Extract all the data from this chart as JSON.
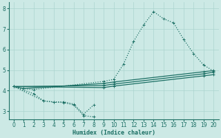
{
  "xlabel": "Humidex (Indice chaleur)",
  "bg_color": "#cce9e5",
  "grid_color": "#aad4cf",
  "line_color": "#1a6e63",
  "xlim": [
    -0.5,
    20.5
  ],
  "ylim": [
    2.6,
    8.3
  ],
  "xticks": [
    0,
    1,
    2,
    3,
    4,
    5,
    6,
    7,
    8,
    9,
    10,
    11,
    12,
    13,
    14,
    15,
    16,
    17,
    18,
    19,
    20
  ],
  "yticks": [
    3,
    4,
    5,
    6,
    7,
    8
  ],
  "line1_x": [
    0,
    1,
    2,
    9,
    10,
    11,
    12,
    13,
    14,
    15,
    16,
    17,
    18,
    19,
    20
  ],
  "line1_y": [
    4.2,
    4.1,
    4.05,
    4.45,
    4.55,
    5.3,
    6.4,
    7.2,
    7.85,
    7.5,
    7.3,
    6.5,
    5.8,
    5.25,
    4.95
  ],
  "line2_x": [
    0,
    2,
    3,
    4,
    5,
    6,
    7,
    8
  ],
  "line2_y": [
    4.2,
    3.85,
    3.5,
    3.45,
    3.45,
    3.35,
    2.85,
    3.3
  ],
  "line3_x": [
    0,
    3,
    4,
    5,
    6,
    7,
    8
  ],
  "line3_y": [
    4.2,
    3.5,
    3.44,
    3.42,
    3.3,
    2.78,
    2.72
  ],
  "line4_x": [
    0,
    1,
    9,
    10,
    19,
    20
  ],
  "line4_y": [
    4.2,
    4.1,
    4.35,
    4.42,
    4.92,
    4.98
  ],
  "line5_x": [
    0,
    9,
    10,
    19,
    20
  ],
  "line5_y": [
    4.2,
    4.25,
    4.32,
    4.82,
    4.9
  ],
  "line6_x": [
    0,
    9,
    10,
    19,
    20
  ],
  "line6_y": [
    4.2,
    4.15,
    4.22,
    4.72,
    4.78
  ],
  "marker": "+",
  "marker_size": 3.5,
  "line_width": 0.9
}
